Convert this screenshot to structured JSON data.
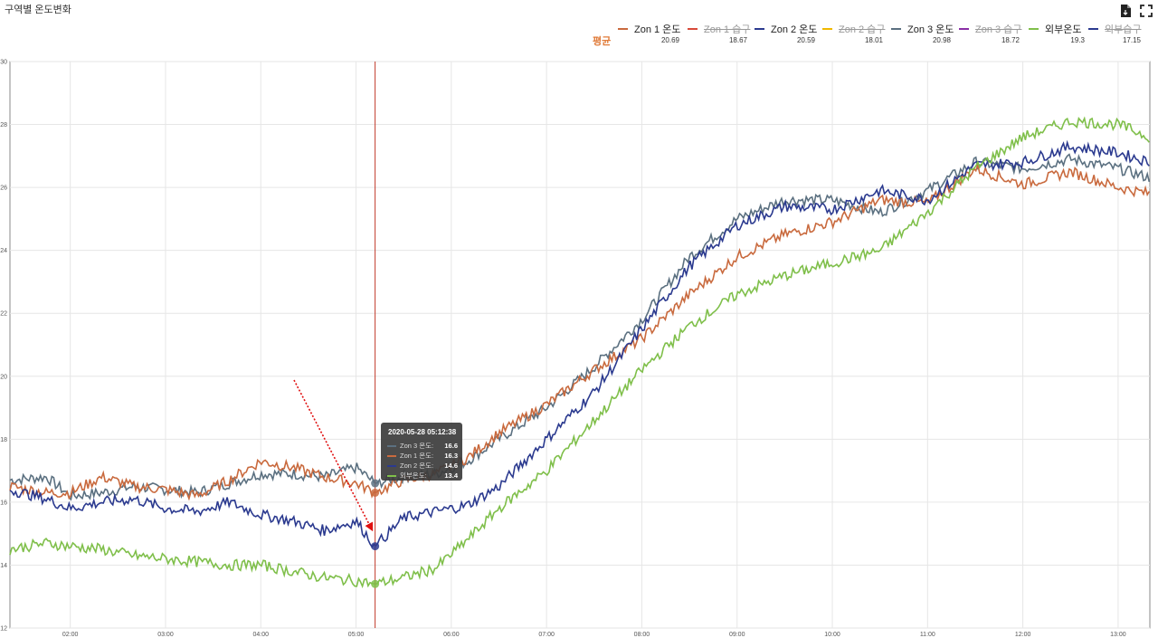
{
  "title": "구역별 온도변화",
  "toolbar": {
    "export_icon": "file-export-icon",
    "fullscreen_icon": "fullscreen-icon"
  },
  "legend": {
    "avg_label": "평균",
    "items": [
      {
        "label": "Zon 1 온도",
        "color": "#c96a3e",
        "active": true,
        "avg": "20.69"
      },
      {
        "label": "Zon 1 습구",
        "color": "#d84a3a",
        "active": false,
        "avg": "18.67"
      },
      {
        "label": "Zon 2 온도",
        "color": "#2b3a8f",
        "active": true,
        "avg": "20.59"
      },
      {
        "label": "Zon 2 습구",
        "color": "#f0b800",
        "active": false,
        "avg": "18.01"
      },
      {
        "label": "Zon 3 온도",
        "color": "#5b7080",
        "active": true,
        "avg": "20.98"
      },
      {
        "label": "Zon 3 습구",
        "color": "#8a2ea6",
        "active": false,
        "avg": "18.72"
      },
      {
        "label": "외부온도",
        "color": "#7fbf4a",
        "active": true,
        "avg": "19.3"
      },
      {
        "label": "외부습구",
        "color": "#2b3a8f",
        "active": false,
        "avg": "17.15"
      }
    ]
  },
  "tooltip": {
    "time": "2020-05-28 05:12:38",
    "rows": [
      {
        "name": "Zon 3 온도:",
        "value": "16.6",
        "color": "#5b7080"
      },
      {
        "name": "Zon 1 온도:",
        "value": "16.3",
        "color": "#c96a3e"
      },
      {
        "name": "Zon 2 온도:",
        "value": "14.6",
        "color": "#2b3a8f"
      },
      {
        "name": "외부온도:",
        "value": "13.4",
        "color": "#7fbf4a"
      }
    ]
  },
  "chart_data": {
    "type": "line",
    "ylim": [
      12,
      30
    ],
    "yticks": [
      "12",
      "14",
      "16",
      "18",
      "20",
      "22",
      "24",
      "26",
      "28",
      "30"
    ],
    "xlim": [
      "01:22",
      "13:20"
    ],
    "xticks": [
      "02:00",
      "03:00",
      "04:00",
      "05:00",
      "06:00",
      "07:00",
      "08:00",
      "09:00",
      "10:00",
      "11:00",
      "12:00",
      "13:00"
    ],
    "grid": true,
    "crosshair_time": "05:12",
    "series": [
      {
        "name": "Zon 3 온도",
        "color": "#5b7080",
        "x": [
          "01:22",
          "01:45",
          "02:00",
          "02:20",
          "02:40",
          "03:00",
          "03:20",
          "03:40",
          "04:00",
          "04:20",
          "04:40",
          "05:00",
          "05:12",
          "05:30",
          "05:50",
          "06:10",
          "06:30",
          "07:00",
          "07:30",
          "08:00",
          "08:30",
          "09:00",
          "09:30",
          "10:00",
          "10:30",
          "11:00",
          "11:30",
          "12:00",
          "12:30",
          "13:00",
          "13:20"
        ],
        "y": [
          16.7,
          16.8,
          16.2,
          16.3,
          16.5,
          16.4,
          16.3,
          16.6,
          16.9,
          16.9,
          16.8,
          17.1,
          16.6,
          16.8,
          16.9,
          17.3,
          18.0,
          19.0,
          20.3,
          21.8,
          23.8,
          25.0,
          25.6,
          25.6,
          25.2,
          25.9,
          26.8,
          26.6,
          26.9,
          26.6,
          26.3
        ]
      },
      {
        "name": "Zon 1 온도",
        "color": "#c96a3e",
        "x": [
          "01:22",
          "01:45",
          "02:00",
          "02:20",
          "02:40",
          "03:00",
          "03:20",
          "03:40",
          "04:00",
          "04:20",
          "04:40",
          "05:00",
          "05:12",
          "05:30",
          "05:50",
          "06:10",
          "06:30",
          "07:00",
          "07:30",
          "08:00",
          "08:30",
          "09:00",
          "09:30",
          "10:00",
          "10:30",
          "11:00",
          "11:30",
          "12:00",
          "12:30",
          "13:00",
          "13:20"
        ],
        "y": [
          16.5,
          16.3,
          16.3,
          16.8,
          16.5,
          16.4,
          16.2,
          16.7,
          17.3,
          17.1,
          16.8,
          16.6,
          16.3,
          16.7,
          16.9,
          17.4,
          18.2,
          19.1,
          20.2,
          21.2,
          22.6,
          23.8,
          24.5,
          24.9,
          25.6,
          25.5,
          26.6,
          26.1,
          26.5,
          26.0,
          25.8
        ]
      },
      {
        "name": "Zon 2 온도",
        "color": "#2b3a8f",
        "x": [
          "01:22",
          "01:45",
          "02:00",
          "02:20",
          "02:40",
          "03:00",
          "03:20",
          "03:40",
          "04:00",
          "04:20",
          "04:40",
          "05:00",
          "05:12",
          "05:30",
          "05:50",
          "06:10",
          "06:30",
          "07:00",
          "07:30",
          "08:00",
          "08:30",
          "09:00",
          "09:30",
          "10:00",
          "10:30",
          "11:00",
          "11:30",
          "12:00",
          "12:30",
          "13:00",
          "13:20"
        ],
        "y": [
          16.4,
          16.1,
          15.8,
          16.0,
          16.1,
          15.8,
          15.7,
          16.0,
          15.6,
          15.4,
          15.1,
          15.4,
          14.6,
          15.5,
          15.7,
          15.9,
          16.5,
          18.0,
          19.5,
          21.5,
          23.5,
          24.8,
          25.4,
          25.3,
          25.9,
          25.6,
          26.7,
          26.8,
          27.3,
          27.1,
          26.8
        ]
      },
      {
        "name": "외부온도",
        "color": "#7fbf4a",
        "x": [
          "01:22",
          "01:45",
          "02:00",
          "02:20",
          "02:40",
          "03:00",
          "03:20",
          "03:40",
          "04:00",
          "04:20",
          "04:40",
          "05:00",
          "05:12",
          "05:30",
          "05:50",
          "06:10",
          "06:30",
          "07:00",
          "07:30",
          "08:00",
          "08:30",
          "09:00",
          "09:30",
          "10:00",
          "10:30",
          "11:00",
          "11:30",
          "12:00",
          "12:30",
          "13:00",
          "13:20"
        ],
        "y": [
          14.5,
          14.7,
          14.6,
          14.5,
          14.3,
          14.2,
          14.1,
          14.0,
          14.0,
          13.8,
          13.6,
          13.5,
          13.4,
          13.6,
          13.9,
          14.8,
          15.8,
          17.0,
          18.6,
          20.2,
          21.6,
          22.6,
          23.2,
          23.6,
          24.0,
          25.2,
          26.6,
          27.6,
          28.1,
          28.0,
          27.6
        ]
      }
    ]
  }
}
